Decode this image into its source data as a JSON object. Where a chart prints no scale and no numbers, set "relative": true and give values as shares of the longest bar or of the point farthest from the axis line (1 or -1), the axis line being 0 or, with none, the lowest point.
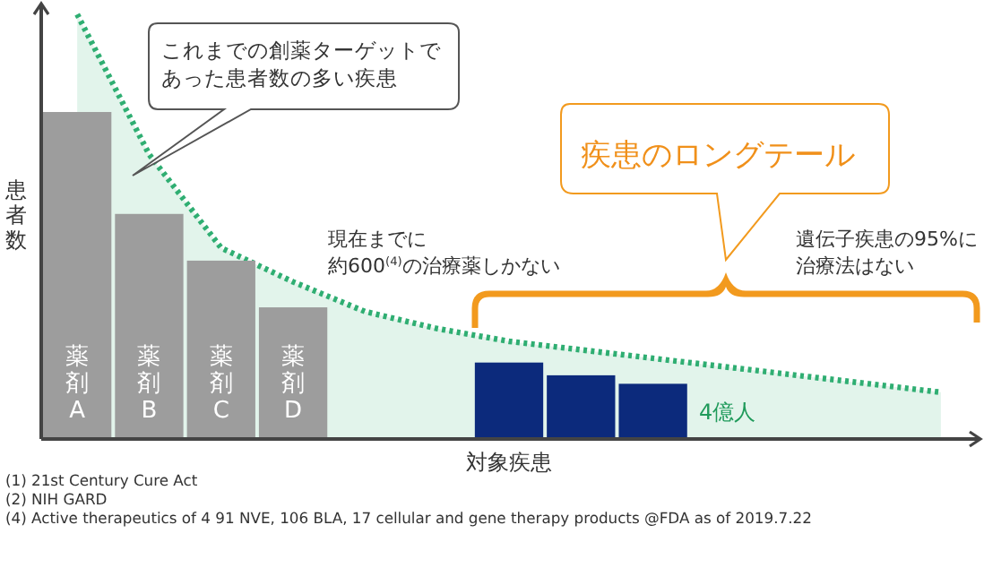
{
  "chart_data": {
    "type": "bar",
    "relative": true,
    "xlabel": "対象疾患",
    "ylabel": "患者数",
    "categories": [
      "薬剤A",
      "薬剤B",
      "薬剤C",
      "薬剤D",
      null,
      null,
      null,
      null,
      null,
      null,
      null,
      null,
      null
    ],
    "series": [
      {
        "type": "area",
        "color": "#2fae72",
        "line_style": "dotted",
        "values": [
          1,
          0.67,
          0.45,
          0.37,
          0.3,
          0.26,
          0.23,
          0.21,
          0.19,
          0.17,
          0.15,
          0.13,
          0.11
        ]
      },
      {
        "colors": [
          "#9d9d9d",
          "#9d9d9d",
          "#9d9d9d",
          "#9d9d9d",
          null,
          null,
          "#0c2a7c",
          "#0c2a7c",
          "#0c2a7c",
          null,
          null,
          null,
          null
        ],
        "values": [
          0.77,
          0.53,
          0.42,
          0.31,
          null,
          null,
          0.18,
          0.15,
          0.13,
          null,
          null,
          null,
          null
        ]
      }
    ],
    "annotations": [
      "これまでの創薬ターゲットであった患者数の多い疾患",
      "疾患のロングテール",
      "現在までに約600$^{(4)}$の治療薬しかない",
      "遺伝子疾患の95%に治療法はない",
      "4億人",
      "(1)  21st Century Cure Act",
      "(2)  NIH GARD",
      "(4)  Active therapeutics of 4 91 NVE, 106 BLA, 17 cellular and gene therapy products @FDA as of 2019.7.22"
    ],
    "legend": false,
    "grid": false
  }
}
